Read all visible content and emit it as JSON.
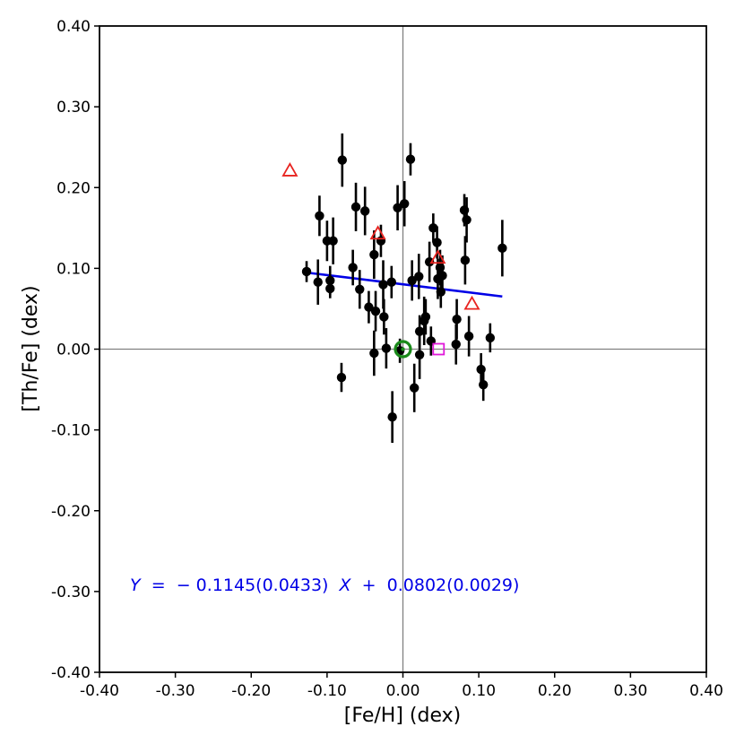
{
  "chart_data": {
    "type": "scatter",
    "title": "",
    "xlabel": "[Fe/H] (dex)",
    "ylabel": "[Th/Fe] (dex)",
    "xlim": [
      -0.4,
      0.4
    ],
    "ylim": [
      -0.4,
      0.4
    ],
    "x_ticks": [
      -0.4,
      -0.3,
      -0.2,
      -0.1,
      0.0,
      0.1,
      0.2,
      0.3,
      0.4
    ],
    "y_ticks": [
      -0.4,
      -0.3,
      -0.2,
      -0.1,
      0.0,
      0.1,
      0.2,
      0.3,
      0.4
    ],
    "x_tick_labels": [
      "-0.40",
      "-0.30",
      "-0.20",
      "-0.10",
      "0.00",
      "0.10",
      "0.20",
      "0.30",
      "0.40"
    ],
    "y_tick_labels": [
      "-0.40",
      "-0.30",
      "-0.20",
      "-0.10",
      "0.00",
      "0.10",
      "0.20",
      "0.30",
      "0.40"
    ],
    "grid": false,
    "reference_lines": {
      "x": 0.0,
      "y": 0.0,
      "color": "#808080"
    },
    "series": [
      {
        "marker": "filled-circle",
        "color": "#000000",
        "points": [
          {
            "x": -0.127,
            "y": 0.096,
            "err": 0.013
          },
          {
            "x": -0.112,
            "y": 0.083,
            "err": 0.028
          },
          {
            "x": -0.11,
            "y": 0.165,
            "err": 0.025
          },
          {
            "x": -0.1,
            "y": 0.134,
            "err": 0.025
          },
          {
            "x": -0.096,
            "y": 0.085,
            "err": 0.018
          },
          {
            "x": -0.096,
            "y": 0.075,
            "err": 0.012
          },
          {
            "x": -0.092,
            "y": 0.134,
            "err": 0.029
          },
          {
            "x": -0.081,
            "y": -0.035,
            "err": 0.018
          },
          {
            "x": -0.08,
            "y": 0.234,
            "err": 0.033
          },
          {
            "x": -0.066,
            "y": 0.101,
            "err": 0.022
          },
          {
            "x": -0.062,
            "y": 0.176,
            "err": 0.03
          },
          {
            "x": -0.057,
            "y": 0.074,
            "err": 0.024
          },
          {
            "x": -0.05,
            "y": 0.171,
            "err": 0.03
          },
          {
            "x": -0.045,
            "y": 0.052,
            "err": 0.02
          },
          {
            "x": -0.038,
            "y": 0.117,
            "err": 0.03
          },
          {
            "x": -0.038,
            "y": -0.005,
            "err": 0.028
          },
          {
            "x": -0.036,
            "y": 0.047,
            "err": 0.025
          },
          {
            "x": -0.029,
            "y": 0.134,
            "err": 0.02
          },
          {
            "x": -0.026,
            "y": 0.08,
            "err": 0.03
          },
          {
            "x": -0.025,
            "y": 0.04,
            "err": 0.022
          },
          {
            "x": -0.022,
            "y": 0.001,
            "err": 0.025
          },
          {
            "x": -0.015,
            "y": 0.083,
            "err": 0.02
          },
          {
            "x": -0.014,
            "y": -0.084,
            "err": 0.032
          },
          {
            "x": -0.007,
            "y": 0.175,
            "err": 0.028
          },
          {
            "x": -0.004,
            "y": -0.002,
            "err": 0.015
          },
          {
            "x": 0.002,
            "y": 0.18,
            "err": 0.028
          },
          {
            "x": 0.01,
            "y": 0.235,
            "err": 0.02
          },
          {
            "x": 0.012,
            "y": 0.085,
            "err": 0.025
          },
          {
            "x": 0.015,
            "y": -0.048,
            "err": 0.03
          },
          {
            "x": 0.021,
            "y": 0.09,
            "err": 0.028
          },
          {
            "x": 0.022,
            "y": 0.022,
            "err": 0.02
          },
          {
            "x": 0.022,
            "y": -0.007,
            "err": 0.03
          },
          {
            "x": 0.028,
            "y": 0.035,
            "err": 0.03
          },
          {
            "x": 0.03,
            "y": 0.04,
            "err": 0.022
          },
          {
            "x": 0.035,
            "y": 0.108,
            "err": 0.025
          },
          {
            "x": 0.037,
            "y": 0.01,
            "err": 0.018
          },
          {
            "x": 0.04,
            "y": 0.15,
            "err": 0.018
          },
          {
            "x": 0.045,
            "y": 0.132,
            "err": 0.02
          },
          {
            "x": 0.046,
            "y": 0.087,
            "err": 0.025
          },
          {
            "x": 0.049,
            "y": 0.101,
            "err": 0.022
          },
          {
            "x": 0.05,
            "y": 0.071,
            "err": 0.02
          },
          {
            "x": 0.052,
            "y": 0.091,
            "err": 0.025
          },
          {
            "x": 0.07,
            "y": 0.006,
            "err": 0.025
          },
          {
            "x": 0.071,
            "y": 0.037,
            "err": 0.025
          },
          {
            "x": 0.081,
            "y": 0.172,
            "err": 0.02
          },
          {
            "x": 0.082,
            "y": 0.11,
            "err": 0.03
          },
          {
            "x": 0.084,
            "y": 0.16,
            "err": 0.028
          },
          {
            "x": 0.087,
            "y": 0.016,
            "err": 0.025
          },
          {
            "x": 0.103,
            "y": -0.025,
            "err": 0.02
          },
          {
            "x": 0.106,
            "y": -0.044,
            "err": 0.02
          },
          {
            "x": 0.115,
            "y": 0.014,
            "err": 0.018
          },
          {
            "x": 0.131,
            "y": 0.125,
            "err": 0.035
          }
        ]
      },
      {
        "marker": "open-triangle",
        "color": "#e8231f",
        "points": [
          {
            "x": -0.149,
            "y": 0.221
          },
          {
            "x": -0.033,
            "y": 0.143
          },
          {
            "x": 0.046,
            "y": 0.113
          },
          {
            "x": 0.091,
            "y": 0.056
          }
        ]
      },
      {
        "marker": "open-square",
        "color": "#e019d9",
        "points": [
          {
            "x": 0.047,
            "y": 0.0
          }
        ]
      },
      {
        "marker": "sun-symbol",
        "color": "#1a8a1a",
        "points": [
          {
            "x": 0.0,
            "y": 0.0
          }
        ]
      }
    ],
    "fit_line": {
      "slope": -0.1145,
      "intercept": 0.0802,
      "x_range": [
        -0.127,
        0.131
      ],
      "color": "#0000e6"
    },
    "annotation": {
      "color": "#0000e6",
      "y_symbol": "Y",
      "equals": " = ",
      "minus": "−",
      "slope_text": "0.1145(0.0433)",
      "x_symbol": "X",
      "plus": " + ",
      "intercept_text": "0.0802(0.0029)"
    }
  }
}
